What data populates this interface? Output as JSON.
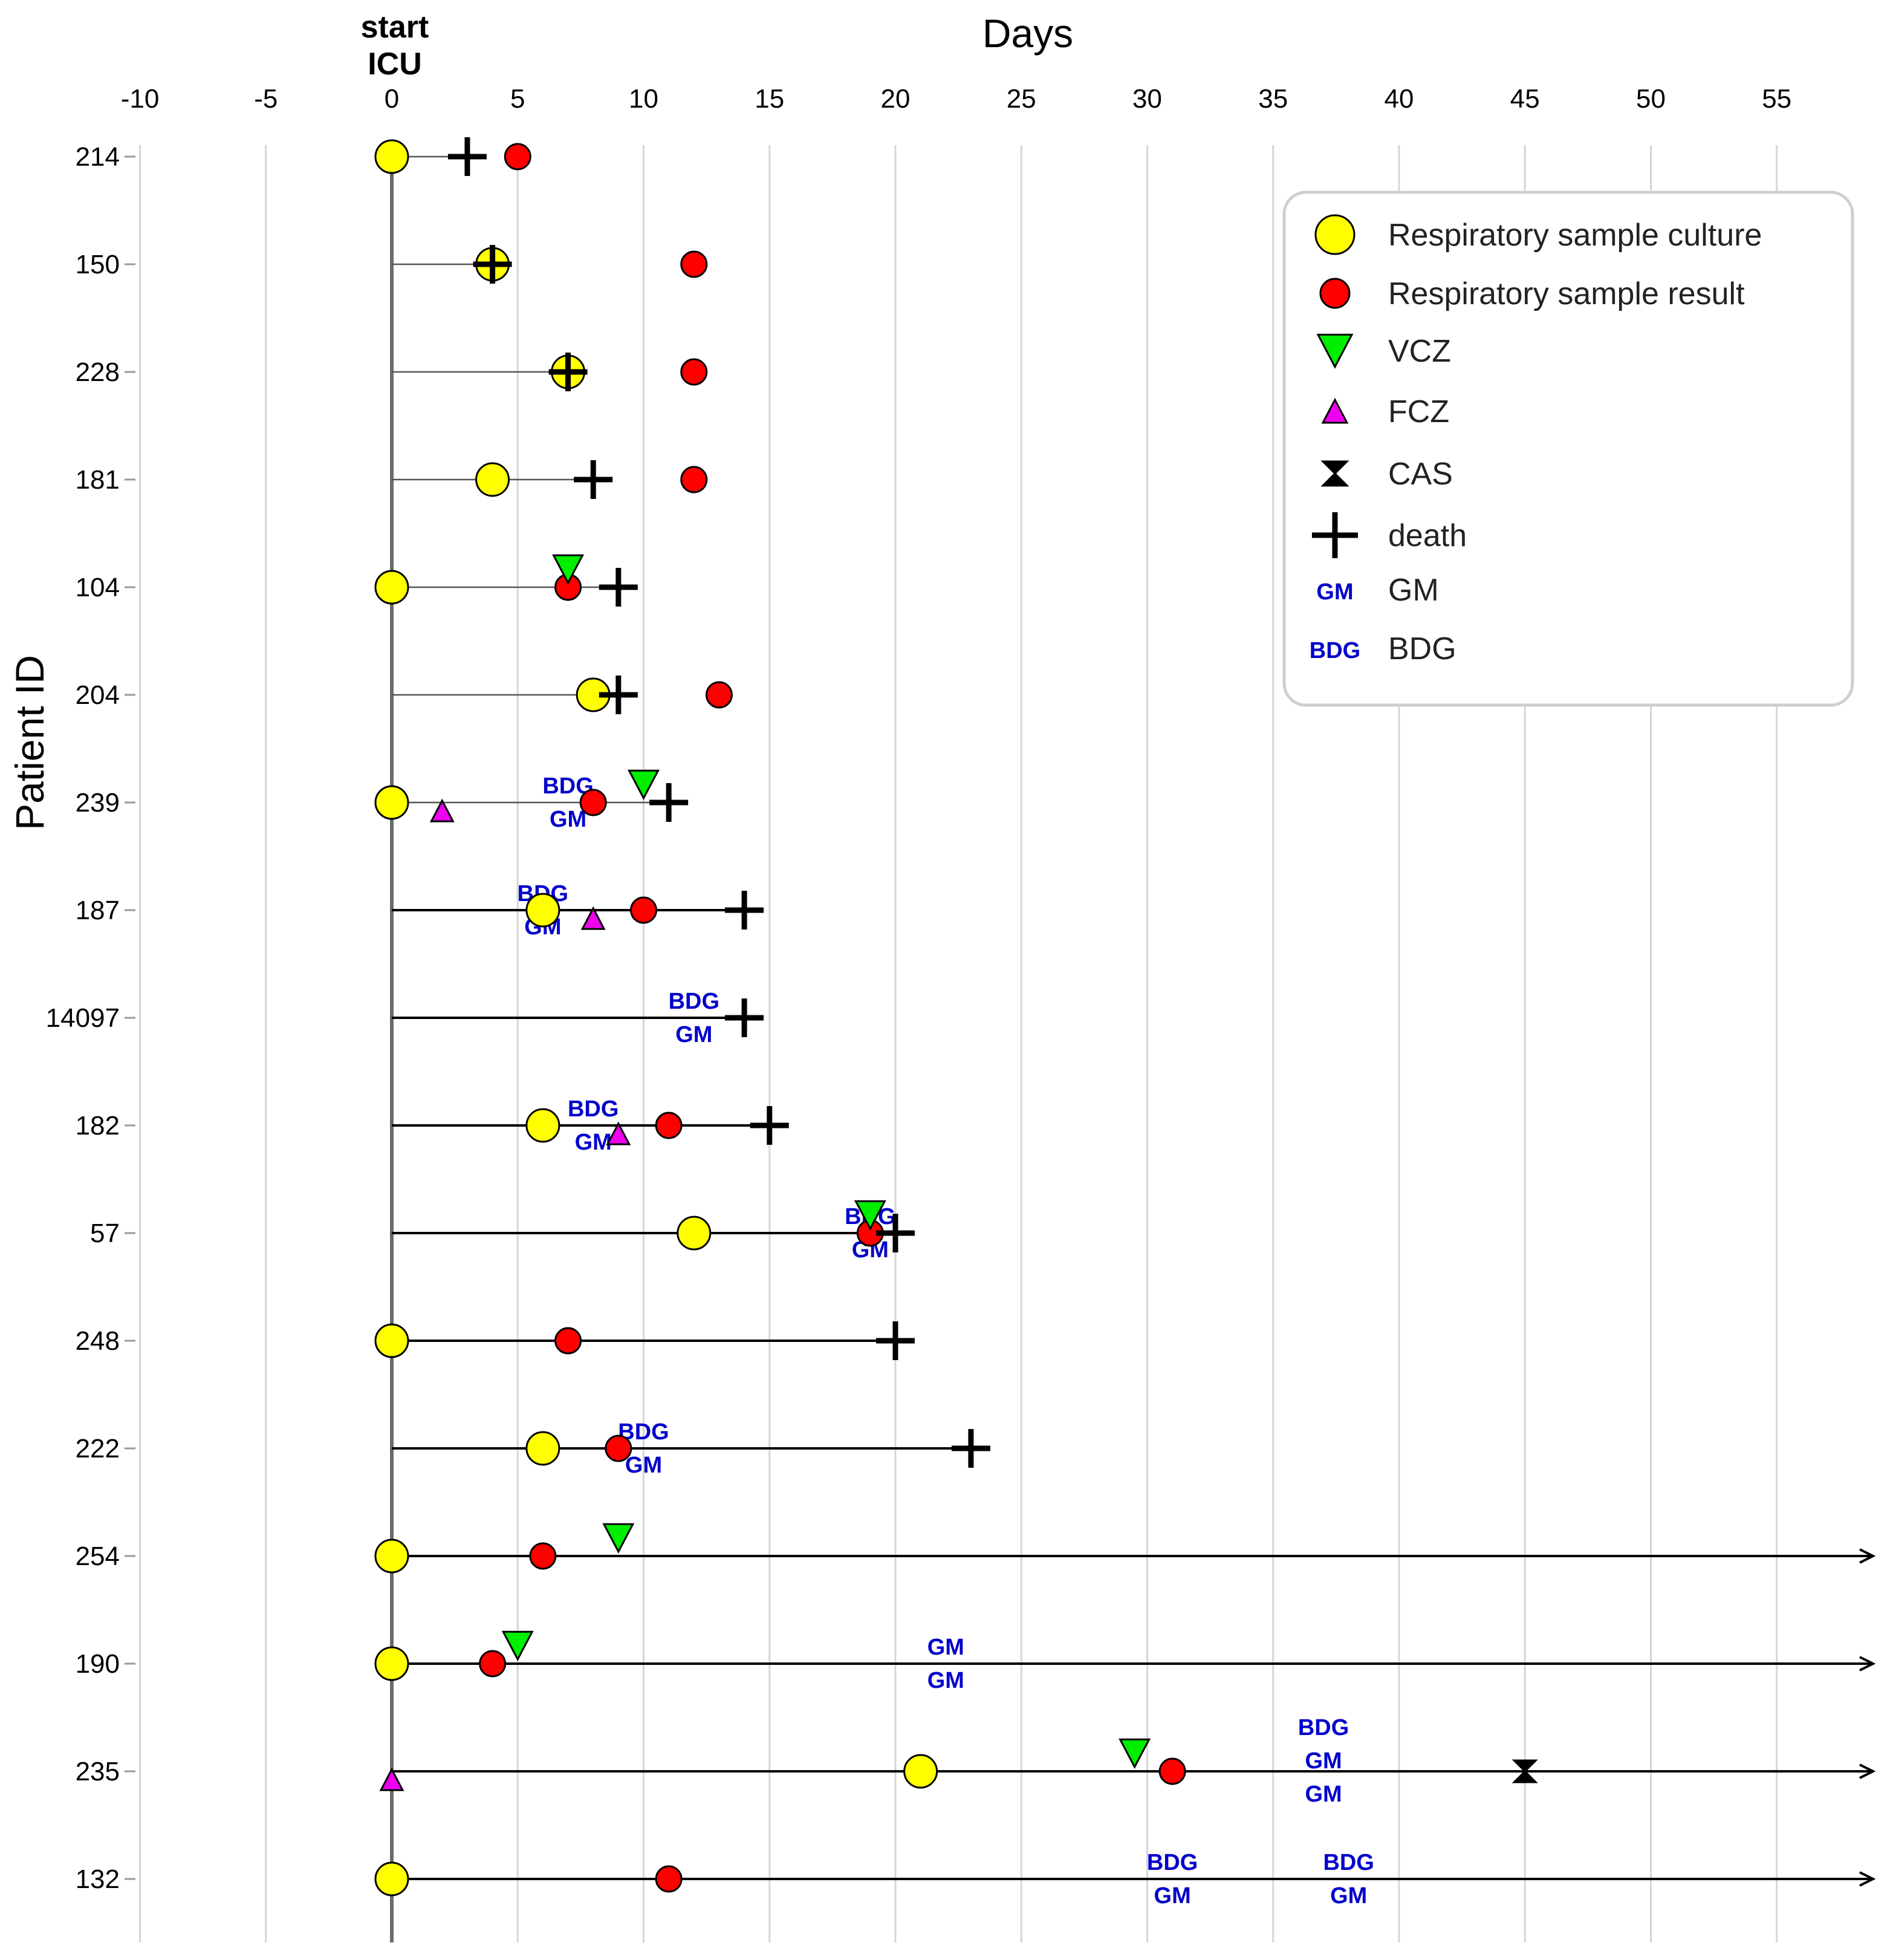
{
  "chart_data": {
    "type": "timeline",
    "title": "Days",
    "start_label_lines": [
      "start",
      "ICU"
    ],
    "ylabel": "Patient ID",
    "xlim": [
      -10,
      59
    ],
    "x_ticks": [
      -10,
      -5,
      0,
      5,
      10,
      15,
      20,
      25,
      30,
      35,
      40,
      45,
      50,
      55
    ],
    "grid": "vertical",
    "legend_position": "top-right",
    "legend": [
      {
        "key": "culture",
        "label": "Respiratory sample culture",
        "marker": "circle-large",
        "color": "#ffff00"
      },
      {
        "key": "result",
        "label": "Respiratory sample result",
        "marker": "circle-small",
        "color": "#ff0000"
      },
      {
        "key": "vcz",
        "label": "VCZ",
        "marker": "triangle-down",
        "color": "#00ee00"
      },
      {
        "key": "fcz",
        "label": "FCZ",
        "marker": "triangle-up",
        "color": "#ee00ee"
      },
      {
        "key": "cas",
        "label": "CAS",
        "marker": "hourglass",
        "color": "#000000"
      },
      {
        "key": "death",
        "label": "death",
        "marker": "plus",
        "color": "#000000"
      },
      {
        "key": "gm",
        "label": "GM",
        "marker": "text",
        "text": "GM",
        "color": "#0000cc"
      },
      {
        "key": "bdg",
        "label": "BDG",
        "marker": "text",
        "text": "BDG",
        "color": "#0000cc"
      }
    ],
    "patients": [
      {
        "id": "214",
        "end": 3,
        "arrow": false,
        "culture": [
          0
        ],
        "result": [
          5
        ],
        "death": 3,
        "vcz": [],
        "fcz": [],
        "cas": [],
        "labs": []
      },
      {
        "id": "150",
        "end": 4,
        "arrow": false,
        "culture": [
          4
        ],
        "result": [
          12
        ],
        "death": 4,
        "vcz": [],
        "fcz": [],
        "cas": [],
        "labs": []
      },
      {
        "id": "228",
        "end": 7,
        "arrow": false,
        "culture": [
          7
        ],
        "result": [
          12
        ],
        "death": 7,
        "vcz": [],
        "fcz": [],
        "cas": [],
        "labs": []
      },
      {
        "id": "181",
        "end": 8,
        "arrow": false,
        "culture": [
          4
        ],
        "result": [
          12
        ],
        "death": 8,
        "vcz": [],
        "fcz": [],
        "cas": [],
        "labs": []
      },
      {
        "id": "104",
        "end": 9,
        "arrow": false,
        "culture": [
          0
        ],
        "result": [
          7
        ],
        "death": 9,
        "vcz": [
          7
        ],
        "fcz": [],
        "cas": [],
        "labs": []
      },
      {
        "id": "204",
        "end": 9,
        "arrow": false,
        "culture": [
          8
        ],
        "result": [
          13
        ],
        "death": 9,
        "vcz": [],
        "fcz": [],
        "cas": [],
        "labs": []
      },
      {
        "id": "239",
        "end": 11,
        "arrow": false,
        "culture": [
          0
        ],
        "result": [
          8
        ],
        "death": 11,
        "vcz": [
          10
        ],
        "fcz": [
          2
        ],
        "cas": [],
        "labs": [
          {
            "day": 7,
            "texts": [
              "BDG",
              "GM"
            ]
          }
        ]
      },
      {
        "id": "187",
        "end": 14,
        "arrow": false,
        "culture": [
          6
        ],
        "result": [
          10
        ],
        "death": 14,
        "vcz": [],
        "fcz": [
          8
        ],
        "cas": [],
        "labs": [
          {
            "day": 6,
            "texts": [
              "BDG",
              "GM"
            ]
          }
        ]
      },
      {
        "id": "14097",
        "end": 14,
        "arrow": false,
        "culture": [],
        "result": [],
        "death": 14,
        "vcz": [],
        "fcz": [],
        "cas": [],
        "labs": [
          {
            "day": 12,
            "texts": [
              "BDG",
              "GM"
            ]
          }
        ]
      },
      {
        "id": "182",
        "end": 15,
        "arrow": false,
        "culture": [
          6
        ],
        "result": [
          11
        ],
        "death": 15,
        "vcz": [],
        "fcz": [
          9
        ],
        "cas": [],
        "labs": [
          {
            "day": 8,
            "texts": [
              "BDG",
              "GM"
            ]
          }
        ]
      },
      {
        "id": "57",
        "end": 20,
        "arrow": false,
        "culture": [
          12
        ],
        "result": [
          19
        ],
        "death": 20,
        "vcz": [
          19
        ],
        "fcz": [],
        "cas": [],
        "labs": [
          {
            "day": 19,
            "texts": [
              "BDG",
              "GM"
            ]
          }
        ]
      },
      {
        "id": "248",
        "end": 20,
        "arrow": false,
        "culture": [
          0
        ],
        "result": [
          7
        ],
        "death": 20,
        "vcz": [],
        "fcz": [],
        "cas": [],
        "labs": []
      },
      {
        "id": "222",
        "end": 23,
        "arrow": false,
        "culture": [
          6
        ],
        "result": [
          9
        ],
        "death": 23,
        "vcz": [],
        "fcz": [],
        "cas": [],
        "labs": [
          {
            "day": 10,
            "texts": [
              "BDG",
              "GM"
            ]
          }
        ]
      },
      {
        "id": "254",
        "end": 59,
        "arrow": true,
        "culture": [
          0
        ],
        "result": [
          6
        ],
        "death": null,
        "vcz": [
          9
        ],
        "fcz": [],
        "cas": [],
        "labs": []
      },
      {
        "id": "190",
        "end": 59,
        "arrow": true,
        "culture": [
          0
        ],
        "result": [
          4
        ],
        "death": null,
        "vcz": [
          5
        ],
        "fcz": [],
        "cas": [],
        "labs": [
          {
            "day": 22,
            "texts": [
              "GM",
              "GM"
            ]
          }
        ]
      },
      {
        "id": "235",
        "end": 59,
        "arrow": true,
        "culture": [
          21
        ],
        "result": [
          31
        ],
        "death": null,
        "vcz": [
          29.5
        ],
        "fcz": [
          0
        ],
        "cas": [
          45
        ],
        "labs": [
          {
            "day": 37,
            "texts": [
              "BDG",
              "GM",
              "GM"
            ]
          }
        ]
      },
      {
        "id": "132",
        "end": 59,
        "arrow": true,
        "culture": [
          0
        ],
        "result": [
          11
        ],
        "death": null,
        "vcz": [],
        "fcz": [],
        "cas": [],
        "labs": [
          {
            "day": 31,
            "texts": [
              "BDG",
              "GM"
            ]
          },
          {
            "day": 38,
            "texts": [
              "BDG",
              "GM"
            ]
          }
        ]
      }
    ]
  }
}
